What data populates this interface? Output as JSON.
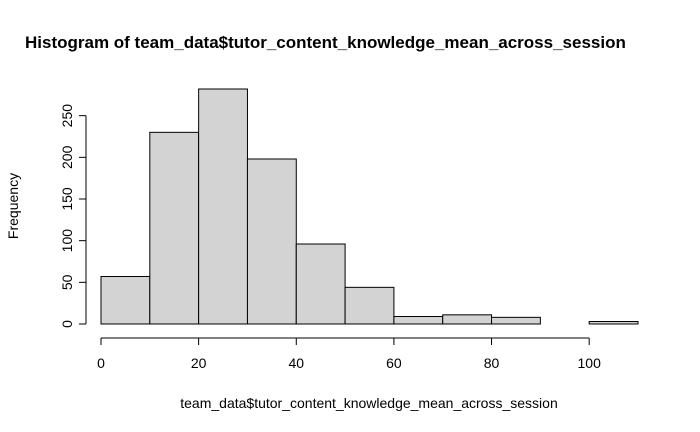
{
  "chart_data": {
    "type": "bar",
    "subtype": "histogram",
    "title": "Histogram of team_data$tutor_content_knowledge_mean_across_session",
    "xlabel": "team_data$tutor_content_knowledge_mean_across_session",
    "ylabel": "Frequency",
    "bins": [
      {
        "start": 0,
        "end": 10,
        "count": 57
      },
      {
        "start": 10,
        "end": 20,
        "count": 230
      },
      {
        "start": 20,
        "end": 30,
        "count": 282
      },
      {
        "start": 30,
        "end": 40,
        "count": 198
      },
      {
        "start": 40,
        "end": 50,
        "count": 96
      },
      {
        "start": 50,
        "end": 60,
        "count": 44
      },
      {
        "start": 60,
        "end": 70,
        "count": 9
      },
      {
        "start": 70,
        "end": 80,
        "count": 11
      },
      {
        "start": 80,
        "end": 90,
        "count": 8
      },
      {
        "start": 90,
        "end": 100,
        "count": 0
      },
      {
        "start": 100,
        "end": 110,
        "count": 3
      }
    ],
    "xlim": [
      0,
      110
    ],
    "ylim": [
      0,
      282
    ],
    "x_ticks": [
      0,
      20,
      40,
      60,
      80,
      100
    ],
    "y_ticks": [
      0,
      50,
      100,
      150,
      200,
      250
    ],
    "bar_fill": "#d3d3d3",
    "bar_stroke": "#000000",
    "grid": false,
    "legend": "none"
  }
}
